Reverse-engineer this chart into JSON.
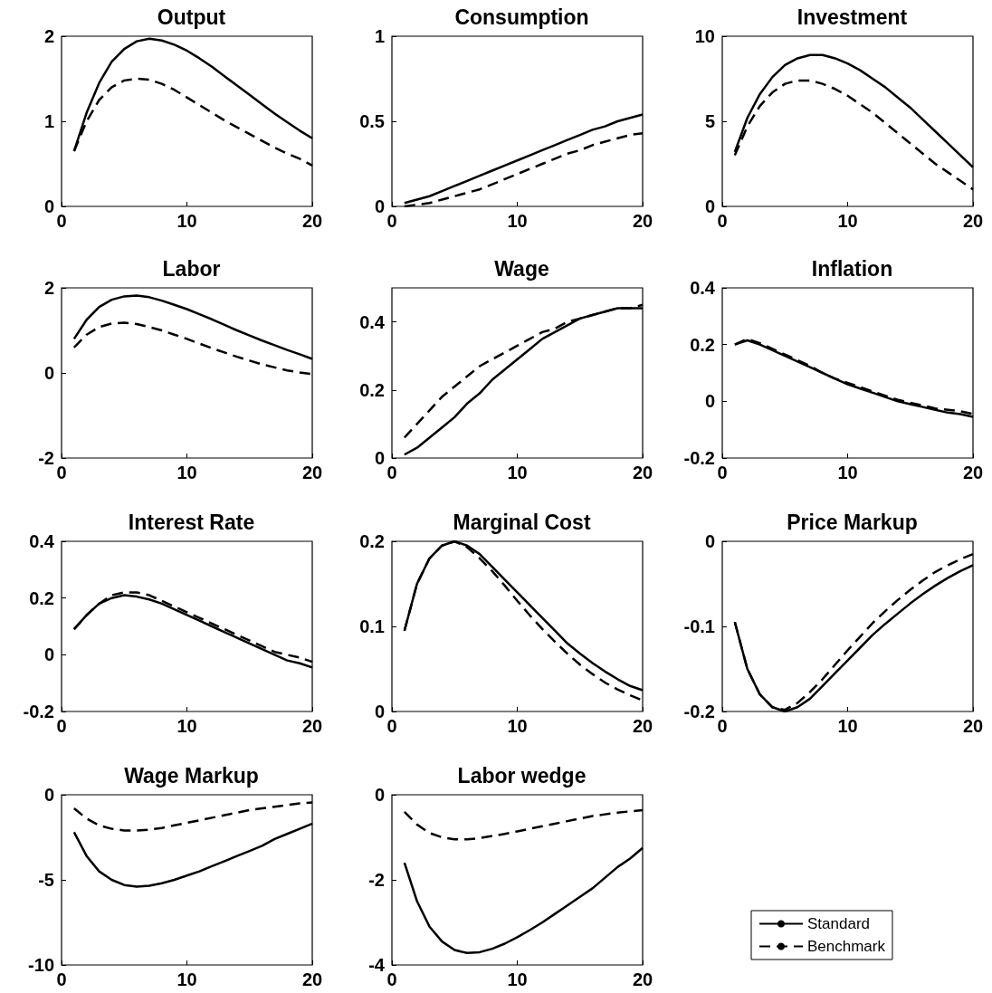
{
  "chart_data": [
    {
      "type": "line",
      "title": "Output",
      "x": [
        1,
        2,
        3,
        4,
        5,
        6,
        7,
        8,
        9,
        10,
        11,
        12,
        13,
        14,
        15,
        16,
        17,
        18,
        19,
        20
      ],
      "xlim": [
        0,
        20
      ],
      "xticks": [
        0,
        10,
        20
      ],
      "ylim": [
        0,
        2
      ],
      "yticks": [
        0,
        1,
        2
      ],
      "grid": false,
      "legend": false,
      "marker": "none",
      "series": [
        {
          "color": "#000000",
          "line_style": "solid",
          "values": [
            0.65,
            1.1,
            1.45,
            1.7,
            1.85,
            1.94,
            1.97,
            1.95,
            1.9,
            1.83,
            1.74,
            1.64,
            1.53,
            1.42,
            1.31,
            1.2,
            1.09,
            0.99,
            0.89,
            0.8
          ]
        },
        {
          "color": "#000000",
          "line_style": "dashed",
          "values": [
            0.65,
            1.0,
            1.25,
            1.4,
            1.48,
            1.5,
            1.49,
            1.44,
            1.37,
            1.28,
            1.19,
            1.1,
            1.01,
            0.93,
            0.85,
            0.77,
            0.69,
            0.62,
            0.56,
            0.48
          ]
        }
      ]
    },
    {
      "type": "line",
      "title": "Consumption",
      "x": [
        1,
        2,
        3,
        4,
        5,
        6,
        7,
        8,
        9,
        10,
        11,
        12,
        13,
        14,
        15,
        16,
        17,
        18,
        19,
        20
      ],
      "xlim": [
        0,
        20
      ],
      "xticks": [
        0,
        10,
        20
      ],
      "ylim": [
        0,
        1
      ],
      "yticks": [
        0,
        0.5,
        1
      ],
      "grid": false,
      "legend": false,
      "marker": "none",
      "series": [
        {
          "color": "#000000",
          "line_style": "solid",
          "values": [
            0.02,
            0.04,
            0.06,
            0.09,
            0.12,
            0.15,
            0.18,
            0.21,
            0.24,
            0.27,
            0.3,
            0.33,
            0.36,
            0.39,
            0.42,
            0.45,
            0.47,
            0.5,
            0.52,
            0.54
          ]
        },
        {
          "color": "#000000",
          "line_style": "dashed",
          "values": [
            0.0,
            0.01,
            0.02,
            0.04,
            0.06,
            0.08,
            0.1,
            0.13,
            0.16,
            0.19,
            0.22,
            0.25,
            0.28,
            0.31,
            0.33,
            0.36,
            0.38,
            0.4,
            0.42,
            0.43
          ]
        }
      ]
    },
    {
      "type": "line",
      "title": "Investment",
      "x": [
        1,
        2,
        3,
        4,
        5,
        6,
        7,
        8,
        9,
        10,
        11,
        12,
        13,
        14,
        15,
        16,
        17,
        18,
        19,
        20
      ],
      "xlim": [
        0,
        20
      ],
      "xticks": [
        0,
        10,
        20
      ],
      "ylim": [
        0,
        10
      ],
      "yticks": [
        0,
        5,
        10
      ],
      "grid": false,
      "legend": false,
      "marker": "none",
      "series": [
        {
          "color": "#000000",
          "line_style": "solid",
          "values": [
            3.2,
            5.2,
            6.6,
            7.6,
            8.3,
            8.7,
            8.9,
            8.9,
            8.7,
            8.4,
            8.0,
            7.5,
            7.0,
            6.4,
            5.8,
            5.1,
            4.4,
            3.7,
            3.0,
            2.3
          ]
        },
        {
          "color": "#000000",
          "line_style": "dashed",
          "values": [
            3.0,
            4.7,
            5.9,
            6.7,
            7.2,
            7.4,
            7.4,
            7.2,
            6.9,
            6.5,
            6.0,
            5.5,
            4.9,
            4.3,
            3.7,
            3.1,
            2.5,
            2.0,
            1.5,
            1.0
          ]
        }
      ]
    },
    {
      "type": "line",
      "title": "Labor",
      "x": [
        1,
        2,
        3,
        4,
        5,
        6,
        7,
        8,
        9,
        10,
        11,
        12,
        13,
        14,
        15,
        16,
        17,
        18,
        19,
        20
      ],
      "xlim": [
        0,
        20
      ],
      "xticks": [
        0,
        10,
        20
      ],
      "ylim": [
        -2,
        2
      ],
      "yticks": [
        -2,
        0,
        2
      ],
      "grid": false,
      "legend": false,
      "marker": "none",
      "series": [
        {
          "color": "#000000",
          "line_style": "solid",
          "values": [
            0.8,
            1.25,
            1.55,
            1.72,
            1.8,
            1.82,
            1.78,
            1.7,
            1.6,
            1.5,
            1.38,
            1.26,
            1.13,
            1.0,
            0.88,
            0.76,
            0.65,
            0.54,
            0.44,
            0.33
          ]
        },
        {
          "color": "#000000",
          "line_style": "dashed",
          "values": [
            0.6,
            0.9,
            1.08,
            1.16,
            1.18,
            1.15,
            1.08,
            1.0,
            0.9,
            0.8,
            0.69,
            0.58,
            0.48,
            0.38,
            0.29,
            0.2,
            0.13,
            0.06,
            0.01,
            -0.03
          ]
        }
      ]
    },
    {
      "type": "line",
      "title": "Wage",
      "x": [
        1,
        2,
        3,
        4,
        5,
        6,
        7,
        8,
        9,
        10,
        11,
        12,
        13,
        14,
        15,
        16,
        17,
        18,
        19,
        20
      ],
      "xlim": [
        0,
        20
      ],
      "xticks": [
        0,
        10,
        20
      ],
      "ylim": [
        0,
        0.5
      ],
      "yticks": [
        0,
        0.2,
        0.4
      ],
      "grid": false,
      "legend": false,
      "marker": "none",
      "series": [
        {
          "color": "#000000",
          "line_style": "solid",
          "values": [
            0.01,
            0.03,
            0.06,
            0.09,
            0.12,
            0.16,
            0.19,
            0.23,
            0.26,
            0.29,
            0.32,
            0.35,
            0.37,
            0.39,
            0.41,
            0.42,
            0.43,
            0.44,
            0.44,
            0.44
          ]
        },
        {
          "color": "#000000",
          "line_style": "dashed",
          "values": [
            0.06,
            0.1,
            0.14,
            0.18,
            0.21,
            0.24,
            0.27,
            0.29,
            0.31,
            0.33,
            0.35,
            0.37,
            0.38,
            0.4,
            0.41,
            0.42,
            0.43,
            0.44,
            0.44,
            0.45
          ]
        }
      ]
    },
    {
      "type": "line",
      "title": "Inflation",
      "x": [
        1,
        2,
        3,
        4,
        5,
        6,
        7,
        8,
        9,
        10,
        11,
        12,
        13,
        14,
        15,
        16,
        17,
        18,
        19,
        20
      ],
      "xlim": [
        0,
        20
      ],
      "xticks": [
        0,
        10,
        20
      ],
      "ylim": [
        -0.2,
        0.4
      ],
      "yticks": [
        -0.2,
        0,
        0.2,
        0.4
      ],
      "grid": false,
      "legend": false,
      "marker": "none",
      "series": [
        {
          "color": "#000000",
          "line_style": "solid",
          "values": [
            0.2,
            0.215,
            0.2,
            0.18,
            0.16,
            0.14,
            0.12,
            0.1,
            0.08,
            0.06,
            0.045,
            0.03,
            0.015,
            0.0,
            -0.01,
            -0.02,
            -0.03,
            -0.04,
            -0.045,
            -0.055
          ]
        },
        {
          "color": "#000000",
          "line_style": "dashed",
          "values": [
            0.2,
            0.22,
            0.205,
            0.185,
            0.165,
            0.145,
            0.125,
            0.1,
            0.08,
            0.065,
            0.05,
            0.035,
            0.02,
            0.005,
            -0.005,
            -0.015,
            -0.025,
            -0.03,
            -0.035,
            -0.045
          ]
        }
      ]
    },
    {
      "type": "line",
      "title": "Interest Rate",
      "x": [
        1,
        2,
        3,
        4,
        5,
        6,
        7,
        8,
        9,
        10,
        11,
        12,
        13,
        14,
        15,
        16,
        17,
        18,
        19,
        20
      ],
      "xlim": [
        0,
        20
      ],
      "xticks": [
        0,
        10,
        20
      ],
      "ylim": [
        -0.2,
        0.4
      ],
      "yticks": [
        -0.2,
        0,
        0.2,
        0.4
      ],
      "grid": false,
      "legend": false,
      "marker": "none",
      "series": [
        {
          "color": "#000000",
          "line_style": "solid",
          "values": [
            0.09,
            0.14,
            0.18,
            0.2,
            0.21,
            0.205,
            0.195,
            0.18,
            0.16,
            0.14,
            0.12,
            0.1,
            0.08,
            0.06,
            0.04,
            0.02,
            0.0,
            -0.02,
            -0.03,
            -0.045
          ]
        },
        {
          "color": "#000000",
          "line_style": "dashed",
          "values": [
            0.09,
            0.14,
            0.18,
            0.21,
            0.22,
            0.22,
            0.21,
            0.19,
            0.17,
            0.15,
            0.13,
            0.11,
            0.09,
            0.07,
            0.05,
            0.03,
            0.01,
            0.0,
            -0.01,
            -0.025
          ]
        }
      ]
    },
    {
      "type": "line",
      "title": "Marginal Cost",
      "x": [
        1,
        2,
        3,
        4,
        5,
        6,
        7,
        8,
        9,
        10,
        11,
        12,
        13,
        14,
        15,
        16,
        17,
        18,
        19,
        20
      ],
      "xlim": [
        0,
        20
      ],
      "xticks": [
        0,
        10,
        20
      ],
      "ylim": [
        0,
        0.2
      ],
      "yticks": [
        0,
        0.1,
        0.2
      ],
      "grid": false,
      "legend": false,
      "marker": "none",
      "series": [
        {
          "color": "#000000",
          "line_style": "solid",
          "values": [
            0.095,
            0.15,
            0.18,
            0.195,
            0.2,
            0.195,
            0.185,
            0.17,
            0.155,
            0.14,
            0.125,
            0.11,
            0.095,
            0.08,
            0.068,
            0.057,
            0.047,
            0.038,
            0.03,
            0.025
          ]
        },
        {
          "color": "#000000",
          "line_style": "dashed",
          "values": [
            0.095,
            0.15,
            0.18,
            0.195,
            0.2,
            0.193,
            0.18,
            0.165,
            0.148,
            0.13,
            0.113,
            0.097,
            0.082,
            0.068,
            0.055,
            0.044,
            0.034,
            0.026,
            0.019,
            0.013
          ]
        }
      ]
    },
    {
      "type": "line",
      "title": "Price Markup",
      "x": [
        1,
        2,
        3,
        4,
        5,
        6,
        7,
        8,
        9,
        10,
        11,
        12,
        13,
        14,
        15,
        16,
        17,
        18,
        19,
        20
      ],
      "xlim": [
        0,
        20
      ],
      "xticks": [
        0,
        10,
        20
      ],
      "ylim": [
        -0.2,
        0
      ],
      "yticks": [
        -0.2,
        -0.1,
        0
      ],
      "grid": false,
      "legend": false,
      "marker": "none",
      "series": [
        {
          "color": "#000000",
          "line_style": "solid",
          "values": [
            -0.095,
            -0.15,
            -0.18,
            -0.195,
            -0.2,
            -0.195,
            -0.185,
            -0.17,
            -0.155,
            -0.14,
            -0.125,
            -0.11,
            -0.097,
            -0.085,
            -0.073,
            -0.062,
            -0.052,
            -0.043,
            -0.035,
            -0.028
          ]
        },
        {
          "color": "#000000",
          "line_style": "dashed",
          "values": [
            -0.095,
            -0.15,
            -0.18,
            -0.195,
            -0.198,
            -0.19,
            -0.177,
            -0.162,
            -0.145,
            -0.128,
            -0.112,
            -0.096,
            -0.082,
            -0.069,
            -0.057,
            -0.046,
            -0.036,
            -0.028,
            -0.021,
            -0.015
          ]
        }
      ]
    },
    {
      "type": "line",
      "title": "Wage Markup",
      "x": [
        1,
        2,
        3,
        4,
        5,
        6,
        7,
        8,
        9,
        10,
        11,
        12,
        13,
        14,
        15,
        16,
        17,
        18,
        19,
        20
      ],
      "xlim": [
        0,
        20
      ],
      "xticks": [
        0,
        10,
        20
      ],
      "ylim": [
        -10,
        0
      ],
      "yticks": [
        -10,
        -5,
        0
      ],
      "grid": false,
      "legend": false,
      "marker": "none",
      "series": [
        {
          "color": "#000000",
          "line_style": "solid",
          "values": [
            -2.2,
            -3.6,
            -4.5,
            -5.0,
            -5.3,
            -5.4,
            -5.35,
            -5.2,
            -5.0,
            -4.75,
            -4.5,
            -4.2,
            -3.9,
            -3.6,
            -3.3,
            -3.0,
            -2.6,
            -2.3,
            -2.0,
            -1.7
          ]
        },
        {
          "color": "#000000",
          "line_style": "dashed",
          "values": [
            -0.8,
            -1.4,
            -1.8,
            -2.0,
            -2.1,
            -2.1,
            -2.05,
            -1.95,
            -1.8,
            -1.65,
            -1.5,
            -1.35,
            -1.2,
            -1.05,
            -0.9,
            -0.8,
            -0.7,
            -0.6,
            -0.5,
            -0.45
          ]
        }
      ]
    },
    {
      "type": "line",
      "title": "Labor wedge",
      "x": [
        1,
        2,
        3,
        4,
        5,
        6,
        7,
        8,
        9,
        10,
        11,
        12,
        13,
        14,
        15,
        16,
        17,
        18,
        19,
        20
      ],
      "xlim": [
        0,
        20
      ],
      "xticks": [
        0,
        10,
        20
      ],
      "ylim": [
        -4,
        0
      ],
      "yticks": [
        -4,
        -2,
        0
      ],
      "grid": false,
      "legend": "right",
      "marker": "none",
      "series": [
        {
          "name": "Standard",
          "color": "#000000",
          "line_style": "solid",
          "values": [
            -1.6,
            -2.5,
            -3.1,
            -3.45,
            -3.65,
            -3.72,
            -3.7,
            -3.62,
            -3.5,
            -3.35,
            -3.18,
            -3.0,
            -2.8,
            -2.6,
            -2.4,
            -2.2,
            -1.95,
            -1.7,
            -1.5,
            -1.25
          ]
        },
        {
          "name": "Benchmark",
          "color": "#000000",
          "line_style": "dashed",
          "values": [
            -0.4,
            -0.7,
            -0.9,
            -1.0,
            -1.05,
            -1.05,
            -1.02,
            -0.97,
            -0.92,
            -0.86,
            -0.8,
            -0.74,
            -0.68,
            -0.62,
            -0.56,
            -0.5,
            -0.46,
            -0.42,
            -0.39,
            -0.36
          ]
        }
      ]
    }
  ]
}
